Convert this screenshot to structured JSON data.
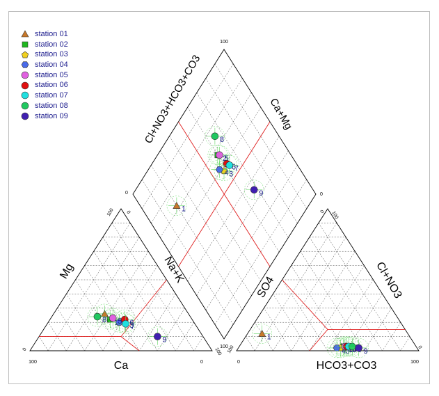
{
  "chart_data": {
    "type": "piper",
    "legend": [
      {
        "name": "station 01",
        "color": "#c8782a",
        "shape": "triangle"
      },
      {
        "name": "station 02",
        "color": "#1fb81f",
        "shape": "square"
      },
      {
        "name": "station 03",
        "color": "#f0d020",
        "shape": "pentagon"
      },
      {
        "name": "station 04",
        "color": "#4a6ae8",
        "shape": "hexagon"
      },
      {
        "name": "station 05",
        "color": "#e060e0",
        "shape": "circle"
      },
      {
        "name": "station 06",
        "color": "#e01010",
        "shape": "circle"
      },
      {
        "name": "station 07",
        "color": "#20e0e0",
        "shape": "circle"
      },
      {
        "name": "station 08",
        "color": "#20c860",
        "shape": "circle"
      },
      {
        "name": "station 09",
        "color": "#4020b0",
        "shape": "circle"
      }
    ],
    "cation_triangle": {
      "axis_labels": {
        "left": "Mg",
        "right": "Na+K",
        "bottom": "Ca"
      },
      "ticks": {
        "bottom_left": "100",
        "bottom_right": "0",
        "left_bottom": "0",
        "left_top": "100",
        "right_top": "0",
        "right_bottom": "100"
      },
      "points": [
        {
          "label": "",
          "Ca": 46,
          "Mg": 26,
          "NaK": 28
        },
        {
          "label": "2",
          "Ca": 45,
          "Mg": 22,
          "NaK": 33
        },
        {
          "label": "3",
          "Ca": 38,
          "Mg": 20,
          "NaK": 42
        },
        {
          "label": "4",
          "Ca": 41,
          "Mg": 20,
          "NaK": 39
        },
        {
          "label": "5",
          "Ca": 43,
          "Mg": 23,
          "NaK": 34
        },
        {
          "label": "6",
          "Ca": 37,
          "Mg": 22,
          "NaK": 41
        },
        {
          "label": "7",
          "Ca": 38,
          "Mg": 19,
          "NaK": 43
        },
        {
          "label": "8",
          "Ca": 51,
          "Mg": 24,
          "NaK": 25
        },
        {
          "label": "9",
          "Ca": 25,
          "Mg": 10,
          "NaK": 65
        }
      ]
    },
    "anion_triangle": {
      "axis_labels": {
        "left": "SO4",
        "right": "Cl+NO3",
        "bottom": "HCO3+CO3"
      },
      "ticks": {
        "bottom_left": "0",
        "bottom_right": "100",
        "left_bottom": "100",
        "left_top": "0",
        "right_top": "100",
        "right_bottom": "0"
      },
      "points": [
        {
          "label": "1",
          "HCO3": 80,
          "SO4": 12,
          "Cl": 8
        },
        {
          "label": "2",
          "HCO3": 40,
          "SO4": 3,
          "Cl": 57
        },
        {
          "label": "3",
          "HCO3": 42,
          "SO4": 2,
          "Cl": 56
        },
        {
          "label": "4",
          "HCO3": 44,
          "SO4": 2,
          "Cl": 54
        },
        {
          "label": "5",
          "HCO3": 39,
          "SO4": 3,
          "Cl": 58
        },
        {
          "label": "6",
          "HCO3": 38,
          "SO4": 3,
          "Cl": 59
        },
        {
          "label": "7",
          "HCO3": 37,
          "SO4": 3,
          "Cl": 60
        },
        {
          "label": "8",
          "HCO3": 35,
          "SO4": 3,
          "Cl": 62
        },
        {
          "label": "9",
          "HCO3": 32,
          "SO4": 2,
          "Cl": 66
        }
      ]
    },
    "diamond": {
      "axis_labels": {
        "upper_left": "Cl+NO3+HCO3+CO3",
        "upper_right": "Ca+Mg"
      },
      "ticks": {
        "left": "0",
        "top": "100",
        "right": "0",
        "bottom": "100"
      },
      "points": [
        {
          "label": "1",
          "station": 1
        },
        {
          "label": "2",
          "station": 2
        },
        {
          "label": "3",
          "station": 3
        },
        {
          "label": "4",
          "station": 4
        },
        {
          "label": "5",
          "station": 5
        },
        {
          "label": "6",
          "station": 6
        },
        {
          "label": "7",
          "station": 7
        },
        {
          "label": "8",
          "station": 8
        },
        {
          "label": "9",
          "station": 9
        }
      ]
    },
    "grid": true
  }
}
